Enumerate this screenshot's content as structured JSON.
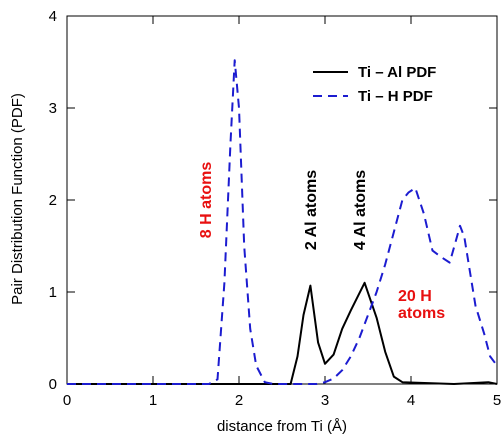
{
  "chart_data": {
    "type": "line",
    "xlabel": "distance from Ti (Å)",
    "ylabel": "Pair Distribution Function (PDF)",
    "xlim": [
      0,
      5
    ],
    "ylim": [
      0,
      4
    ],
    "x_ticks": [
      "0",
      "1",
      "2",
      "3",
      "4",
      "5"
    ],
    "y_ticks": [
      "0",
      "1",
      "2",
      "3",
      "4"
    ],
    "grid": false,
    "legend_position": "top-right",
    "series": [
      {
        "name": "Ti – Al PDF",
        "color": "#000000",
        "dash": "solid",
        "x": [
          0,
          2.6,
          2.68,
          2.75,
          2.83,
          2.92,
          3.0,
          3.1,
          3.2,
          3.3,
          3.46,
          3.6,
          3.7,
          3.8,
          3.9,
          4.5,
          4.9,
          5.0
        ],
        "y": [
          0,
          0,
          0.3,
          0.75,
          1.07,
          0.45,
          0.22,
          0.32,
          0.6,
          0.8,
          1.1,
          0.72,
          0.35,
          0.08,
          0.02,
          0,
          0.02,
          0
        ]
      },
      {
        "name": "Ti – H PDF",
        "color": "#1c1cd0",
        "dash": "dashed",
        "x": [
          0,
          1.65,
          1.75,
          1.83,
          1.9,
          1.95,
          2.0,
          2.06,
          2.13,
          2.2,
          2.3,
          2.4,
          2.9,
          3.0,
          3.1,
          3.2,
          3.3,
          3.4,
          3.5,
          3.6,
          3.7,
          3.8,
          3.9,
          3.97,
          4.05,
          4.15,
          4.25,
          4.35,
          4.45,
          4.52,
          4.57,
          4.62,
          4.68,
          4.75,
          4.85,
          4.92,
          5.0
        ],
        "y": [
          0,
          0,
          0.05,
          1.1,
          2.6,
          3.52,
          3.0,
          1.5,
          0.6,
          0.2,
          0.02,
          0,
          0,
          0.02,
          0.06,
          0.15,
          0.3,
          0.5,
          0.75,
          1.0,
          1.3,
          1.65,
          2.0,
          2.08,
          2.13,
          1.85,
          1.45,
          1.38,
          1.32,
          1.55,
          1.72,
          1.6,
          1.25,
          0.85,
          0.55,
          0.3,
          0.2
        ]
      }
    ],
    "annotations": [
      {
        "text": "8 H atoms",
        "color": "#e81010"
      },
      {
        "text": "2 Al atoms",
        "color": "#000000"
      },
      {
        "text": "4 Al atoms",
        "color": "#000000"
      },
      {
        "text": "20 H",
        "color": "#e81010"
      },
      {
        "text": "atoms",
        "color": "#e81010"
      }
    ]
  }
}
